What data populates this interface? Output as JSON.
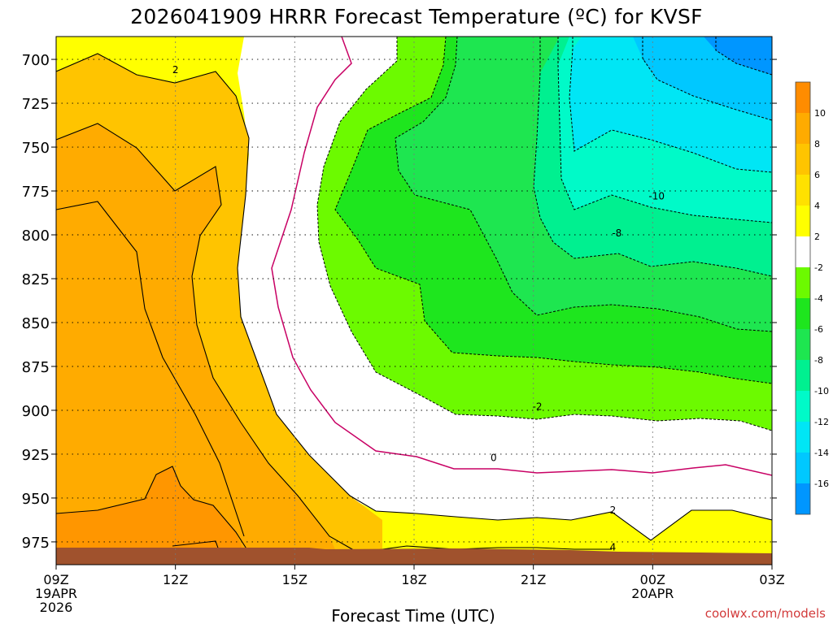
{
  "chart_data": {
    "type": "contour",
    "title": "2026041909 HRRR Forecast Temperature (ºC) for KVSF",
    "xlabel": "Forecast Time (UTC)",
    "ylabel": "",
    "credit": "coolwx.com/models",
    "x_ticks": [
      {
        "hour": 0,
        "label": "09Z",
        "sub1": "19APR",
        "sub2": "2026"
      },
      {
        "hour": 3,
        "label": "12Z",
        "sub1": "",
        "sub2": ""
      },
      {
        "hour": 6,
        "label": "15Z",
        "sub1": "",
        "sub2": ""
      },
      {
        "hour": 9,
        "label": "18Z",
        "sub1": "",
        "sub2": ""
      },
      {
        "hour": 12,
        "label": "21Z",
        "sub1": "",
        "sub2": ""
      },
      {
        "hour": 15,
        "label": "00Z",
        "sub1": "20APR",
        "sub2": ""
      },
      {
        "hour": 18,
        "label": "03Z",
        "sub1": "",
        "sub2": ""
      }
    ],
    "y_ticks": [
      700,
      725,
      750,
      775,
      800,
      825,
      850,
      875,
      900,
      925,
      950,
      975
    ],
    "xlim": [
      0,
      18
    ],
    "ylim_hpa": [
      687,
      988
    ],
    "surface_pressure_hpa": 976,
    "contour_labels": [
      {
        "text": "2",
        "hour": 3.0,
        "p": 706
      },
      {
        "text": "-10",
        "hour": 15.1,
        "p": 778
      },
      {
        "text": "-8",
        "hour": 14.1,
        "p": 799
      },
      {
        "text": "-2",
        "hour": 12.1,
        "p": 898
      },
      {
        "text": "0",
        "hour": 11.0,
        "p": 927
      },
      {
        "text": "2",
        "hour": 14.0,
        "p": 957
      },
      {
        "text": "4",
        "hour": 14.0,
        "p": 978
      }
    ],
    "colorbar": {
      "levels": [
        10,
        8,
        6,
        4,
        2,
        -2,
        -4,
        -6,
        -8,
        -10,
        -12,
        -14,
        -16
      ],
      "colors": [
        "#ff8c00",
        "#ffab00",
        "#ffc400",
        "#ffe100",
        "#ffff00",
        "#ffffff",
        "#6cfa00",
        "#1ee61e",
        "#1ee650",
        "#00f090",
        "#00fac8",
        "#00e6f5",
        "#00c8ff",
        "#0096ff"
      ]
    },
    "colors": {
      "warm_4_6": "#ffc400",
      "warm_6_8": "#ffab00",
      "warm_8_10": "#ff9600",
      "yellow_2_4": "#ffff00",
      "neutral": "#ffffff",
      "green_m2_m4": "#6cfa00",
      "green_m4_m6": "#1ee61e",
      "green_m6_m8": "#1ee650",
      "teal_m8_m10": "#00f090",
      "aqua_m10_m12": "#00fac8",
      "cyan_m12_m14": "#00e6f5",
      "blue_m14_m16": "#00c8ff",
      "blue_m16": "#0096ff",
      "zero_line": "#c80064",
      "ground": "#a0522d"
    }
  }
}
